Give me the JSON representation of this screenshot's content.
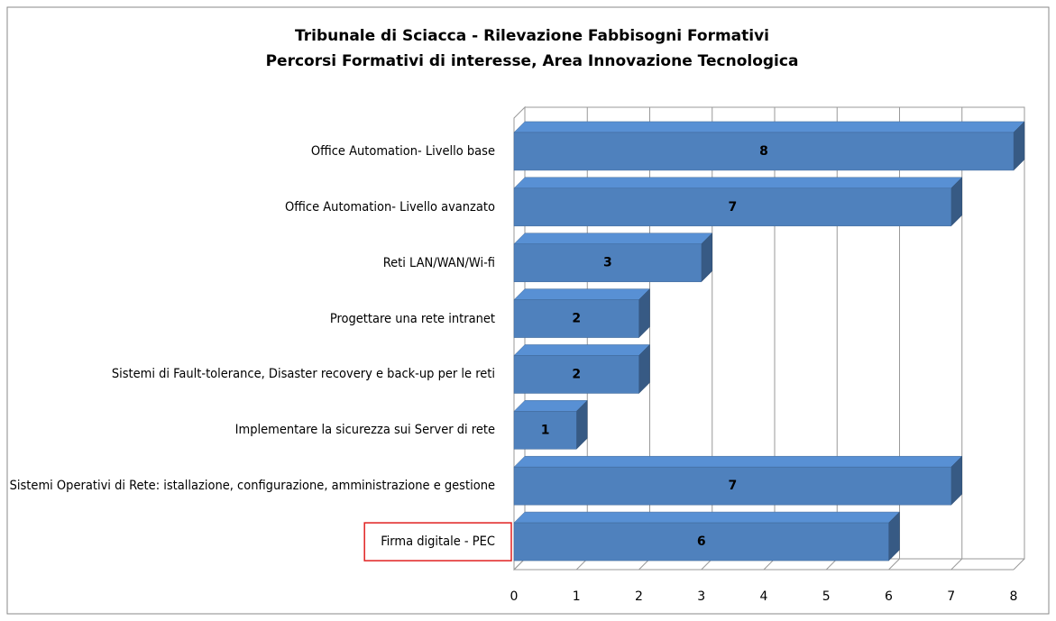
{
  "chart_data": {
    "type": "bar3d_horizontal",
    "title": "Tribunale di Sciacca - Rilevazione  Fabbisogni  Formativi",
    "subtitle": "Percorsi Formativi di interesse, Area Innovazione  Tecnologica",
    "categories": [
      "Office Automation- Livello base",
      "Office Automation- Livello avanzato",
      "Reti LAN/WAN/Wi-fi",
      "Progettare una rete intranet",
      "Sistemi di Fault-tolerance, Disaster recovery e back-up per le reti",
      "Implementare la sicurezza sui Server di rete",
      "Sistemi Operativi di Rete: istallazione, configurazione, amministrazione  e gestione",
      "Firma digitale  - PEC"
    ],
    "values": [
      8,
      7,
      3,
      2,
      2,
      1,
      7,
      6
    ],
    "color": "#4f81bd",
    "xlim": [
      0,
      8
    ],
    "xticks": [
      0,
      1,
      2,
      3,
      4,
      5,
      6,
      7,
      8
    ],
    "grid": true,
    "highlighted_category": 7
  }
}
